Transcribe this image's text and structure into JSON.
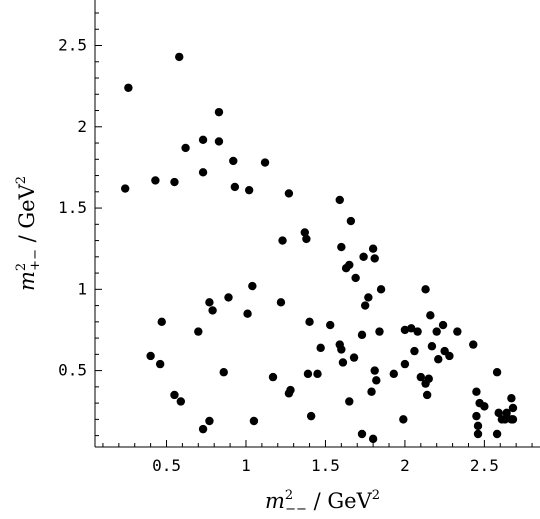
{
  "chart_data": {
    "type": "scatter",
    "title": "",
    "xlabel": {
      "symbol": "m",
      "superscript": "2",
      "subscript": "−−",
      "unit": " / GeV",
      "unit_superscript": "2"
    },
    "ylabel": {
      "symbol": "m",
      "superscript": "2",
      "subscript": "+−",
      "unit": " / GeV",
      "unit_superscript": "2"
    },
    "xlim": [
      0.05,
      2.85
    ],
    "ylim": [
      0.03,
      2.78
    ],
    "xticks": [
      0.5,
      1,
      1.5,
      2,
      2.5
    ],
    "xtick_labels": [
      "0.5",
      "1",
      "1.5",
      "2",
      "2.5"
    ],
    "yticks": [
      0.5,
      1,
      1.5,
      2,
      2.5
    ],
    "ytick_labels": [
      "0.5",
      "1",
      "1.5",
      "2",
      "2.5"
    ],
    "grid": false,
    "legend": "none",
    "marker_color": "#000000",
    "axis_color": "#000000",
    "series": [
      {
        "points": [
          [
            0.26,
            2.24
          ],
          [
            0.58,
            2.43
          ],
          [
            0.24,
            1.62
          ],
          [
            0.43,
            1.67
          ],
          [
            0.55,
            1.66
          ],
          [
            0.62,
            1.87
          ],
          [
            0.73,
            1.92
          ],
          [
            0.83,
            2.09
          ],
          [
            0.83,
            1.91
          ],
          [
            0.73,
            1.72
          ],
          [
            0.92,
            1.79
          ],
          [
            0.93,
            1.63
          ],
          [
            1.02,
            1.61
          ],
          [
            1.12,
            1.78
          ],
          [
            1.27,
            1.59
          ],
          [
            1.23,
            1.3
          ],
          [
            1.37,
            1.35
          ],
          [
            1.38,
            1.31
          ],
          [
            1.59,
            1.55
          ],
          [
            1.66,
            1.42
          ],
          [
            1.6,
            1.26
          ],
          [
            1.63,
            1.13
          ],
          [
            1.65,
            1.15
          ],
          [
            1.69,
            1.07
          ],
          [
            1.74,
            1.2
          ],
          [
            1.8,
            1.25
          ],
          [
            1.81,
            1.19
          ],
          [
            1.77,
            0.95
          ],
          [
            1.75,
            0.9
          ],
          [
            1.85,
            1.0
          ],
          [
            1.04,
            1.02
          ],
          [
            0.89,
            0.95
          ],
          [
            0.77,
            0.92
          ],
          [
            0.79,
            0.87
          ],
          [
            1.01,
            0.85
          ],
          [
            1.22,
            0.92
          ],
          [
            0.47,
            0.8
          ],
          [
            0.7,
            0.74
          ],
          [
            0.4,
            0.59
          ],
          [
            0.46,
            0.54
          ],
          [
            0.86,
            0.49
          ],
          [
            1.4,
            0.8
          ],
          [
            1.47,
            0.64
          ],
          [
            1.53,
            0.78
          ],
          [
            1.59,
            0.66
          ],
          [
            1.6,
            0.63
          ],
          [
            1.61,
            0.55
          ],
          [
            1.68,
            0.58
          ],
          [
            1.73,
            0.72
          ],
          [
            1.84,
            0.74
          ],
          [
            1.93,
            0.48
          ],
          [
            1.81,
            0.5
          ],
          [
            1.79,
            0.37
          ],
          [
            1.82,
            0.44
          ],
          [
            1.39,
            0.48
          ],
          [
            1.45,
            0.48
          ],
          [
            1.28,
            0.38
          ],
          [
            1.27,
            0.36
          ],
          [
            1.17,
            0.46
          ],
          [
            0.55,
            0.35
          ],
          [
            0.59,
            0.31
          ],
          [
            0.77,
            0.19
          ],
          [
            0.73,
            0.14
          ],
          [
            1.05,
            0.19
          ],
          [
            1.41,
            0.22
          ],
          [
            1.65,
            0.31
          ],
          [
            1.73,
            0.11
          ],
          [
            1.8,
            0.08
          ],
          [
            1.99,
            0.2
          ],
          [
            2.0,
            0.75
          ],
          [
            2.0,
            0.54
          ],
          [
            2.04,
            0.76
          ],
          [
            2.06,
            0.62
          ],
          [
            2.08,
            0.74
          ],
          [
            2.13,
            1.0
          ],
          [
            2.1,
            0.46
          ],
          [
            2.13,
            0.42
          ],
          [
            2.16,
            0.84
          ],
          [
            2.15,
            0.45
          ],
          [
            2.14,
            0.35
          ],
          [
            2.17,
            0.65
          ],
          [
            2.2,
            0.74
          ],
          [
            2.21,
            0.57
          ],
          [
            2.24,
            0.78
          ],
          [
            2.25,
            0.62
          ],
          [
            2.28,
            0.59
          ],
          [
            2.33,
            0.74
          ],
          [
            2.43,
            0.66
          ],
          [
            2.45,
            0.37
          ],
          [
            2.45,
            0.22
          ],
          [
            2.46,
            0.16
          ],
          [
            2.46,
            0.11
          ],
          [
            2.47,
            0.3
          ],
          [
            2.5,
            0.28
          ],
          [
            2.58,
            0.49
          ],
          [
            2.58,
            0.11
          ],
          [
            2.59,
            0.24
          ],
          [
            2.61,
            0.2
          ],
          [
            2.63,
            0.2
          ],
          [
            2.64,
            0.24
          ],
          [
            2.67,
            0.2
          ],
          [
            2.67,
            0.33
          ],
          [
            2.68,
            0.27
          ],
          [
            2.68,
            0.2
          ]
        ]
      }
    ]
  }
}
